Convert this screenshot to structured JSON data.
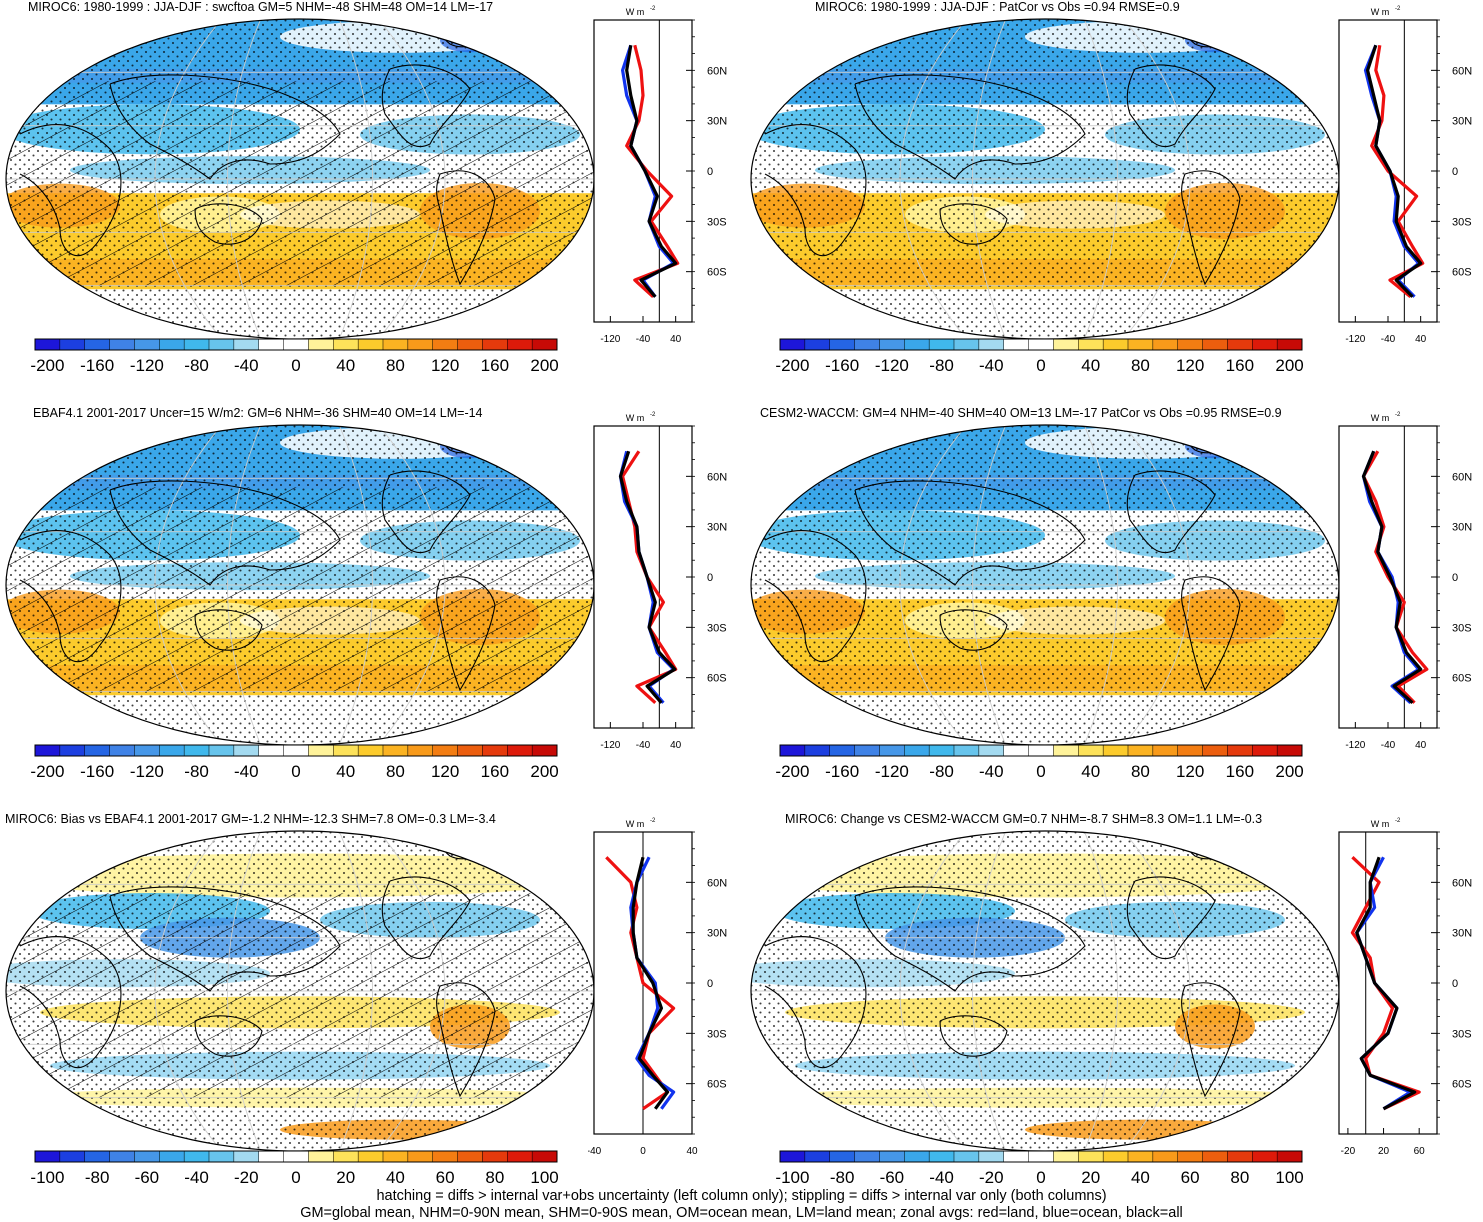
{
  "colormap": [
    "#1d16d9",
    "#1c3fe0",
    "#2565e4",
    "#3f82e6",
    "#4697e8",
    "#3aa7ea",
    "#40b8ec",
    "#67c4ec",
    "#a3daf0",
    "#ffffff",
    "#ffffff",
    "#fff39a",
    "#fde25a",
    "#fccb2c",
    "#fbb322",
    "#f89a1a",
    "#f37d12",
    "#ec5e0e",
    "#e53a0c",
    "#dd1a0a",
    "#c70a06"
  ],
  "line_colors": {
    "land": "#ee1111",
    "ocean": "#1133ee",
    "all": "#000000"
  },
  "units": "W m",
  "units_exp": "-2",
  "lat_ticks": [
    "60N",
    "30N",
    "0",
    "30S",
    "60S"
  ],
  "panels": [
    {
      "title": "MIROC6: 1980-1999 : JJA-DJF : swcftoa GM=5 NHM=-48 SHM=48 OM=14 LM=-17",
      "cbar_labels": [
        "-200",
        "-160",
        "-120",
        "-80",
        "-40",
        "0",
        "40",
        "80",
        "120",
        "160",
        "200"
      ],
      "xticks": [
        "-120",
        "-40",
        "40"
      ]
    },
    {
      "title": "MIROC6: 1980-1999 : JJA-DJF : PatCor vs Obs =0.94 RMSE=0.9",
      "cbar_labels": [
        "-200",
        "-160",
        "-120",
        "-80",
        "-40",
        "0",
        "40",
        "80",
        "120",
        "160",
        "200"
      ],
      "xticks": [
        "-120",
        "-40",
        "40"
      ]
    },
    {
      "title": "EBAF4.1 2001-2017 Uncer=15 W/m2: GM=6 NHM=-36 SHM=40 OM=14 LM=-14",
      "cbar_labels": [
        "-200",
        "-160",
        "-120",
        "-80",
        "-40",
        "0",
        "40",
        "80",
        "120",
        "160",
        "200"
      ],
      "xticks": [
        "-120",
        "-40",
        "40"
      ]
    },
    {
      "title": "CESM2-WACCM: GM=4 NHM=-40 SHM=40 OM=13 LM=-17 PatCor vs Obs =0.95 RMSE=0.9",
      "cbar_labels": [
        "-200",
        "-160",
        "-120",
        "-80",
        "-40",
        "0",
        "40",
        "80",
        "120",
        "160",
        "200"
      ],
      "xticks": [
        "-120",
        "-40",
        "40"
      ]
    },
    {
      "title": "MIROC6: Bias vs EBAF4.1 2001-2017 GM=-1.2 NHM=-12.3 SHM=7.8 OM=-0.3 LM=-3.4",
      "cbar_labels": [
        "-100",
        "-80",
        "-60",
        "-40",
        "-20",
        "0",
        "20",
        "40",
        "60",
        "80",
        "100"
      ],
      "xticks": [
        "-40",
        "0",
        "40"
      ]
    },
    {
      "title": "MIROC6: Change vs CESM2-WACCM GM=0.7 NHM=-8.7 SHM=8.3 OM=1.1 LM=-0.3",
      "cbar_labels": [
        "-100",
        "-80",
        "-60",
        "-40",
        "-20",
        "0",
        "20",
        "40",
        "60",
        "80",
        "100"
      ],
      "xticks": [
        "-20",
        "20",
        "60"
      ]
    }
  ],
  "chart_data": [
    {
      "type": "heatmap",
      "title": "MIROC6: 1980-1999 : JJA-DJF : swcftoa GM=5 NHM=-48 SHM=48 OM=14 LM=-17",
      "colorbar_range": [
        -200,
        200
      ],
      "zonal_xlim": [
        -160,
        80
      ],
      "zonal_x_ticks": [
        -120,
        -40,
        40
      ],
      "zonal_lat": [
        75,
        60,
        45,
        30,
        15,
        0,
        -15,
        -30,
        -45,
        -55,
        -65,
        -75
      ],
      "zonal": {
        "land": [
          -60,
          -45,
          -40,
          -50,
          -80,
          -30,
          30,
          -20,
          20,
          45,
          -60,
          -15
        ],
        "ocean": [
          -70,
          -90,
          -80,
          -55,
          -70,
          -35,
          -10,
          -25,
          0,
          35,
          -40,
          -10
        ],
        "all": [
          -70,
          -80,
          -70,
          -55,
          -70,
          -35,
          -5,
          -25,
          5,
          40,
          -45,
          -10
        ]
      }
    },
    {
      "type": "heatmap",
      "title": "MIROC6: 1980-1999 : JJA-DJF : PatCor vs Obs =0.94 RMSE=0.9",
      "colorbar_range": [
        -200,
        200
      ],
      "zonal_xlim": [
        -160,
        80
      ],
      "zonal_x_ticks": [
        -120,
        -40,
        40
      ],
      "zonal_lat": [
        75,
        60,
        45,
        30,
        15,
        0,
        -15,
        -30,
        -45,
        -55,
        -65,
        -75
      ],
      "zonal": {
        "land": [
          -60,
          -70,
          -50,
          -55,
          -80,
          -40,
          30,
          -15,
          20,
          45,
          -35,
          15
        ],
        "ocean": [
          -70,
          -95,
          -80,
          -60,
          -70,
          -35,
          -20,
          -25,
          0,
          35,
          -15,
          25
        ],
        "all": [
          -70,
          -90,
          -75,
          -60,
          -70,
          -35,
          -15,
          -20,
          5,
          40,
          -20,
          20
        ]
      }
    },
    {
      "type": "heatmap",
      "title": "EBAF4.1 2001-2017 Uncer=15 W/m2: GM=6 NHM=-36 SHM=40 OM=14 LM=-14",
      "colorbar_range": [
        -200,
        200
      ],
      "zonal_xlim": [
        -160,
        80
      ],
      "zonal_x_ticks": [
        -120,
        -40,
        40
      ],
      "zonal_lat": [
        75,
        60,
        45,
        30,
        15,
        0,
        -15,
        -30,
        -45,
        -55,
        -65,
        -75
      ],
      "zonal": {
        "land": [
          -50,
          -90,
          -75,
          -60,
          -55,
          -30,
          10,
          -25,
          15,
          40,
          -55,
          -10
        ],
        "ocean": [
          -80,
          -95,
          -85,
          -55,
          -50,
          -30,
          -15,
          -25,
          -5,
          35,
          -25,
          10
        ],
        "all": [
          -75,
          -95,
          -80,
          -55,
          -50,
          -30,
          -10,
          -25,
          0,
          38,
          -30,
          5
        ]
      }
    },
    {
      "type": "heatmap",
      "title": "CESM2-WACCM: GM=4 NHM=-40 SHM=40 OM=13 LM=-17 PatCor vs Obs =0.95 RMSE=0.9",
      "colorbar_range": [
        -200,
        200
      ],
      "zonal_xlim": [
        -160,
        80
      ],
      "zonal_x_ticks": [
        -120,
        -40,
        40
      ],
      "zonal_lat": [
        75,
        60,
        45,
        30,
        15,
        0,
        -15,
        -30,
        -45,
        -55,
        -65,
        -75
      ],
      "zonal": {
        "land": [
          -65,
          -100,
          -70,
          -50,
          -70,
          -40,
          0,
          -20,
          20,
          55,
          -15,
          25
        ],
        "ocean": [
          -75,
          -100,
          -85,
          -55,
          -65,
          -30,
          -15,
          -20,
          0,
          35,
          -30,
          15
        ],
        "all": [
          -75,
          -100,
          -80,
          -55,
          -65,
          -35,
          -10,
          -20,
          5,
          40,
          -25,
          20
        ]
      }
    },
    {
      "type": "heatmap",
      "title": "MIROC6: Bias vs EBAF4.1 2001-2017 GM=-1.2 NHM=-12.3 SHM=7.8 OM=-0.3 LM=-3.4",
      "colorbar_range": [
        -100,
        100
      ],
      "zonal_xlim": [
        -40,
        40
      ],
      "zonal_x_ticks": [
        -40,
        0,
        40
      ],
      "zonal_lat": [
        75,
        60,
        45,
        30,
        15,
        0,
        -15,
        -30,
        -45,
        -55,
        -65,
        -75
      ],
      "zonal": {
        "land": [
          -30,
          -10,
          -5,
          -10,
          -5,
          0,
          25,
          5,
          0,
          10,
          20,
          0
        ],
        "ocean": [
          5,
          -5,
          -10,
          -8,
          -5,
          10,
          12,
          5,
          -5,
          5,
          25,
          15
        ],
        "all": [
          0,
          -5,
          -8,
          -8,
          -5,
          8,
          15,
          5,
          -3,
          8,
          20,
          10
        ]
      }
    },
    {
      "type": "heatmap",
      "title": "MIROC6: Change vs CESM2-WACCM GM=0.7 NHM=-8.7 SHM=8.3 OM=1.1 LM=-0.3",
      "colorbar_range": [
        -100,
        100
      ],
      "zonal_xlim": [
        -30,
        80
      ],
      "zonal_x_ticks": [
        -20,
        20,
        60
      ],
      "zonal_lat": [
        75,
        60,
        45,
        30,
        15,
        0,
        -15,
        -30,
        -45,
        -55,
        -65,
        -75
      ],
      "zonal": {
        "land": [
          -15,
          15,
          0,
          -15,
          5,
          10,
          30,
          20,
          0,
          5,
          60,
          20
        ],
        "ocean": [
          20,
          5,
          10,
          -10,
          0,
          10,
          35,
          25,
          -5,
          5,
          50,
          20
        ],
        "all": [
          15,
          5,
          5,
          -10,
          0,
          10,
          35,
          25,
          -5,
          5,
          55,
          20
        ]
      }
    }
  ],
  "footer": {
    "line1": "hatching = diffs > internal var+obs uncertainty (left column only); stippling = diffs > internal var only (both columns)",
    "line2": "GM=global mean, NHM=0-90N mean, SHM=0-90S mean, OM=ocean mean, LM=land mean; zonal avgs: red=land, blue=ocean, black=all"
  }
}
